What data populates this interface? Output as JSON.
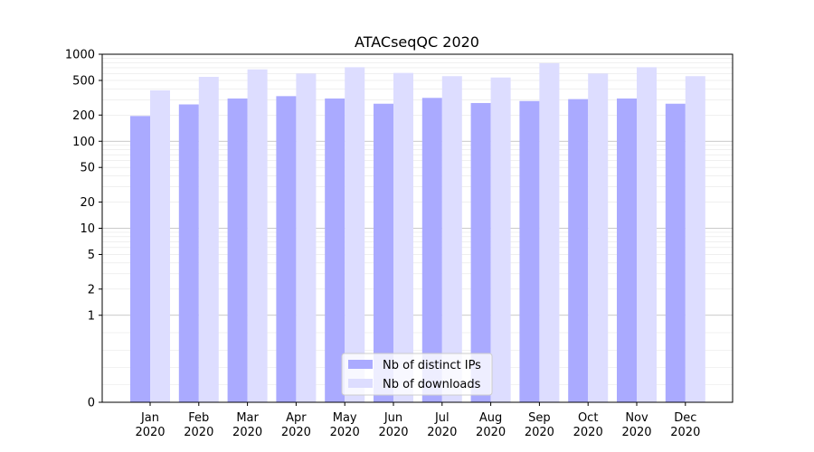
{
  "chart_data": {
    "type": "bar",
    "title": "ATACseqQC 2020",
    "xlabel": "",
    "ylabel": "",
    "y_scale": "symlog",
    "ylim": [
      0,
      1000
    ],
    "y_ticks": [
      0,
      1,
      2,
      5,
      10,
      20,
      50,
      100,
      200,
      500,
      1000
    ],
    "grid": true,
    "legend_position": "bottom-center",
    "categories": [
      [
        "Jan",
        "2020"
      ],
      [
        "Feb",
        "2020"
      ],
      [
        "Mar",
        "2020"
      ],
      [
        "Apr",
        "2020"
      ],
      [
        "May",
        "2020"
      ],
      [
        "Jun",
        "2020"
      ],
      [
        "Jul",
        "2020"
      ],
      [
        "Aug",
        "2020"
      ],
      [
        "Sep",
        "2020"
      ],
      [
        "Oct",
        "2020"
      ],
      [
        "Nov",
        "2020"
      ],
      [
        "Dec",
        "2020"
      ]
    ],
    "series": [
      {
        "name": "Nb of distinct IPs",
        "color": "#aaaaff",
        "values": [
          195,
          265,
          310,
          330,
          310,
          270,
          315,
          275,
          290,
          305,
          310,
          270
        ]
      },
      {
        "name": "Nb of downloads",
        "color": "#ddddff",
        "values": [
          385,
          550,
          670,
          600,
          710,
          610,
          560,
          540,
          790,
          600,
          710,
          560
        ]
      }
    ]
  }
}
